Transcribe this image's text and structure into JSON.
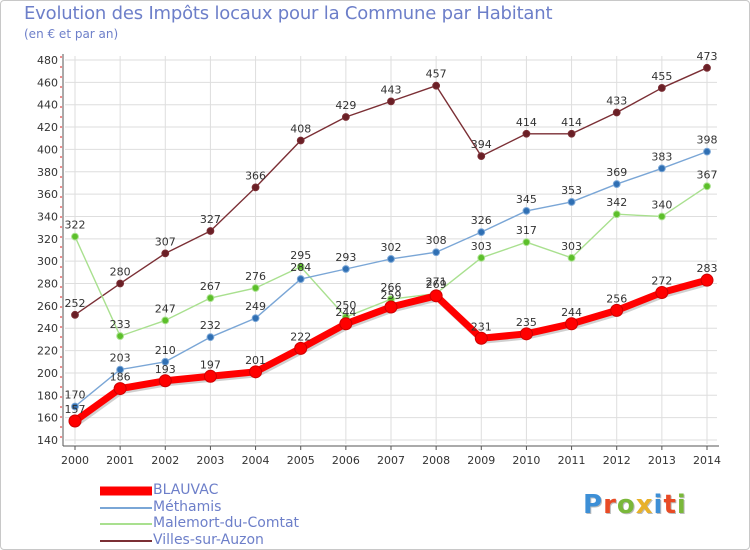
{
  "chart_data": {
    "type": "line",
    "title": "Evolution des Impôts locaux pour la Commune par Habitant",
    "subtitle": "(en € et par an)",
    "x": [
      "2000",
      "2001",
      "2002",
      "2003",
      "2004",
      "2005",
      "2006",
      "2007",
      "2008",
      "2009",
      "2010",
      "2011",
      "2012",
      "2013",
      "2014"
    ],
    "ylim": [
      140,
      480
    ],
    "yticks": [
      140,
      160,
      180,
      200,
      220,
      240,
      260,
      280,
      300,
      320,
      340,
      360,
      380,
      400,
      420,
      440,
      460,
      480
    ],
    "grid": true,
    "legend_position": "bottom-left",
    "series": [
      {
        "name": "BLAUVAC",
        "color": "#ff0000",
        "values": [
          157,
          186,
          193,
          197,
          201,
          222,
          244,
          259,
          269,
          231,
          235,
          244,
          256,
          272,
          283
        ]
      },
      {
        "name": "Méthamis",
        "color": "#7aa6d6",
        "values": [
          170,
          203,
          210,
          232,
          249,
          284,
          293,
          302,
          308,
          326,
          345,
          353,
          369,
          383,
          398
        ]
      },
      {
        "name": "Malemort-du-Comtat",
        "color": "#a9e08f",
        "values": [
          322,
          233,
          247,
          267,
          276,
          295,
          250,
          266,
          271,
          303,
          317,
          303,
          342,
          340,
          367
        ]
      },
      {
        "name": "Villes-sur-Auzon",
        "color": "#7b2f35",
        "values": [
          252,
          280,
          307,
          327,
          366,
          408,
          429,
          443,
          457,
          394,
          414,
          414,
          433,
          455,
          473
        ]
      }
    ]
  },
  "logo": {
    "letters": [
      "P",
      "r",
      "o",
      "x",
      "i",
      "t",
      "i"
    ],
    "colors": [
      "#3d8fd6",
      "#e84b25",
      "#7ab83a",
      "#e8b12a",
      "#3d8fd6",
      "#e84b25",
      "#7ab83a"
    ]
  }
}
